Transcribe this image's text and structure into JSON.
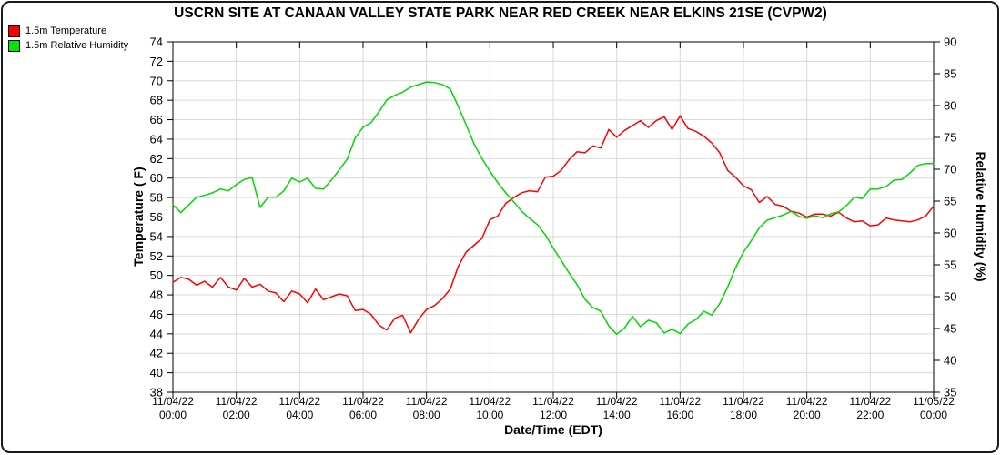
{
  "title": "USCRN SITE AT CANAAN VALLEY STATE PARK NEAR RED CREEK NEAR ELKINS 21SE (CVPW2)",
  "legend": [
    {
      "label": "1.5m Temperature",
      "color": "#ff0000"
    },
    {
      "label": "1.5m Relative Humidity",
      "color": "#00e800"
    }
  ],
  "chart_data": {
    "type": "line",
    "title": "USCRN SITE AT CANAAN VALLEY STATE PARK NEAR RED CREEK NEAR ELKINS 21SE (CVPW2)",
    "grid": true,
    "x_axis": {
      "label": "Date/Time (EDT)",
      "range_hours": [
        0,
        24
      ],
      "tick_interval_hours": 2,
      "tick_labels": [
        [
          "11/04/22",
          "00:00"
        ],
        [
          "11/04/22",
          "02:00"
        ],
        [
          "11/04/22",
          "04:00"
        ],
        [
          "11/04/22",
          "06:00"
        ],
        [
          "11/04/22",
          "08:00"
        ],
        [
          "11/04/22",
          "10:00"
        ],
        [
          "11/04/22",
          "12:00"
        ],
        [
          "11/04/22",
          "14:00"
        ],
        [
          "11/04/22",
          "16:00"
        ],
        [
          "11/04/22",
          "18:00"
        ],
        [
          "11/04/22",
          "20:00"
        ],
        [
          "11/04/22",
          "22:00"
        ],
        [
          "11/05/22",
          "00:00"
        ]
      ]
    },
    "y_left": {
      "label": "Temperature ( F)",
      "min": 38,
      "max": 74,
      "tick_step": 2
    },
    "y_right": {
      "label": "Relative Humidity (%)",
      "min": 35,
      "max": 90,
      "tick_step": 5
    },
    "x_start_hour": 0,
    "x_step_hour": 0.25,
    "series": [
      {
        "name": "1.5m Temperature",
        "axis": "left",
        "color": "#ff0000",
        "values": [
          49.3,
          49.8,
          49.6,
          49.0,
          49.4,
          48.8,
          49.8,
          48.8,
          48.5,
          49.7,
          48.8,
          49.1,
          48.4,
          48.2,
          47.3,
          48.4,
          48.1,
          47.2,
          48.6,
          47.5,
          47.8,
          48.1,
          47.9,
          46.4,
          46.5,
          46.0,
          44.9,
          44.4,
          45.6,
          45.9,
          44.1,
          45.5,
          46.5,
          46.9,
          47.6,
          48.6,
          50.9,
          52.4,
          53.1,
          53.8,
          55.7,
          56.1,
          57.4,
          58.0,
          58.5,
          58.7,
          58.6,
          60.1,
          60.2,
          60.8,
          61.9,
          62.7,
          62.6,
          63.3,
          63.1,
          65.0,
          64.2,
          64.9,
          65.4,
          65.9,
          65.2,
          65.9,
          66.3,
          65.0,
          66.4,
          65.1,
          64.8,
          64.3,
          63.6,
          62.6,
          60.8,
          60.1,
          59.2,
          58.8,
          57.5,
          58.1,
          57.3,
          57.1,
          56.6,
          56.4,
          56.0,
          56.3,
          56.3,
          56.1,
          56.5,
          55.9,
          55.5,
          55.6,
          55.1,
          55.2,
          55.9,
          55.7,
          55.6,
          55.5,
          55.7,
          56.1,
          57.1
        ]
      },
      {
        "name": "1.5m Relative Humidity",
        "axis": "right",
        "color": "#00d800",
        "values": [
          64.4,
          63.2,
          64.4,
          65.6,
          65.9,
          66.3,
          66.9,
          66.6,
          67.6,
          68.4,
          68.7,
          64.0,
          65.6,
          65.6,
          66.6,
          68.6,
          68.0,
          68.6,
          67.0,
          66.9,
          68.3,
          69.9,
          71.6,
          74.9,
          76.6,
          77.3,
          79.0,
          80.9,
          81.6,
          82.1,
          82.9,
          83.3,
          83.7,
          83.6,
          83.3,
          82.6,
          79.9,
          77.0,
          74.0,
          71.7,
          69.7,
          67.9,
          66.3,
          64.9,
          63.4,
          62.3,
          61.3,
          59.7,
          57.6,
          55.7,
          53.7,
          51.9,
          49.6,
          48.3,
          47.7,
          45.4,
          44.1,
          45.1,
          46.9,
          45.3,
          46.3,
          45.9,
          44.3,
          44.9,
          44.2,
          45.7,
          46.4,
          47.7,
          47.1,
          48.9,
          51.5,
          54.5,
          57.0,
          58.8,
          60.8,
          62.0,
          62.4,
          62.8,
          63.4,
          62.6,
          62.3,
          62.7,
          62.4,
          63.0,
          63.3,
          64.3,
          65.6,
          65.4,
          66.9,
          66.9,
          67.3,
          68.3,
          68.4,
          69.4,
          70.6,
          70.9,
          70.9
        ]
      }
    ]
  }
}
